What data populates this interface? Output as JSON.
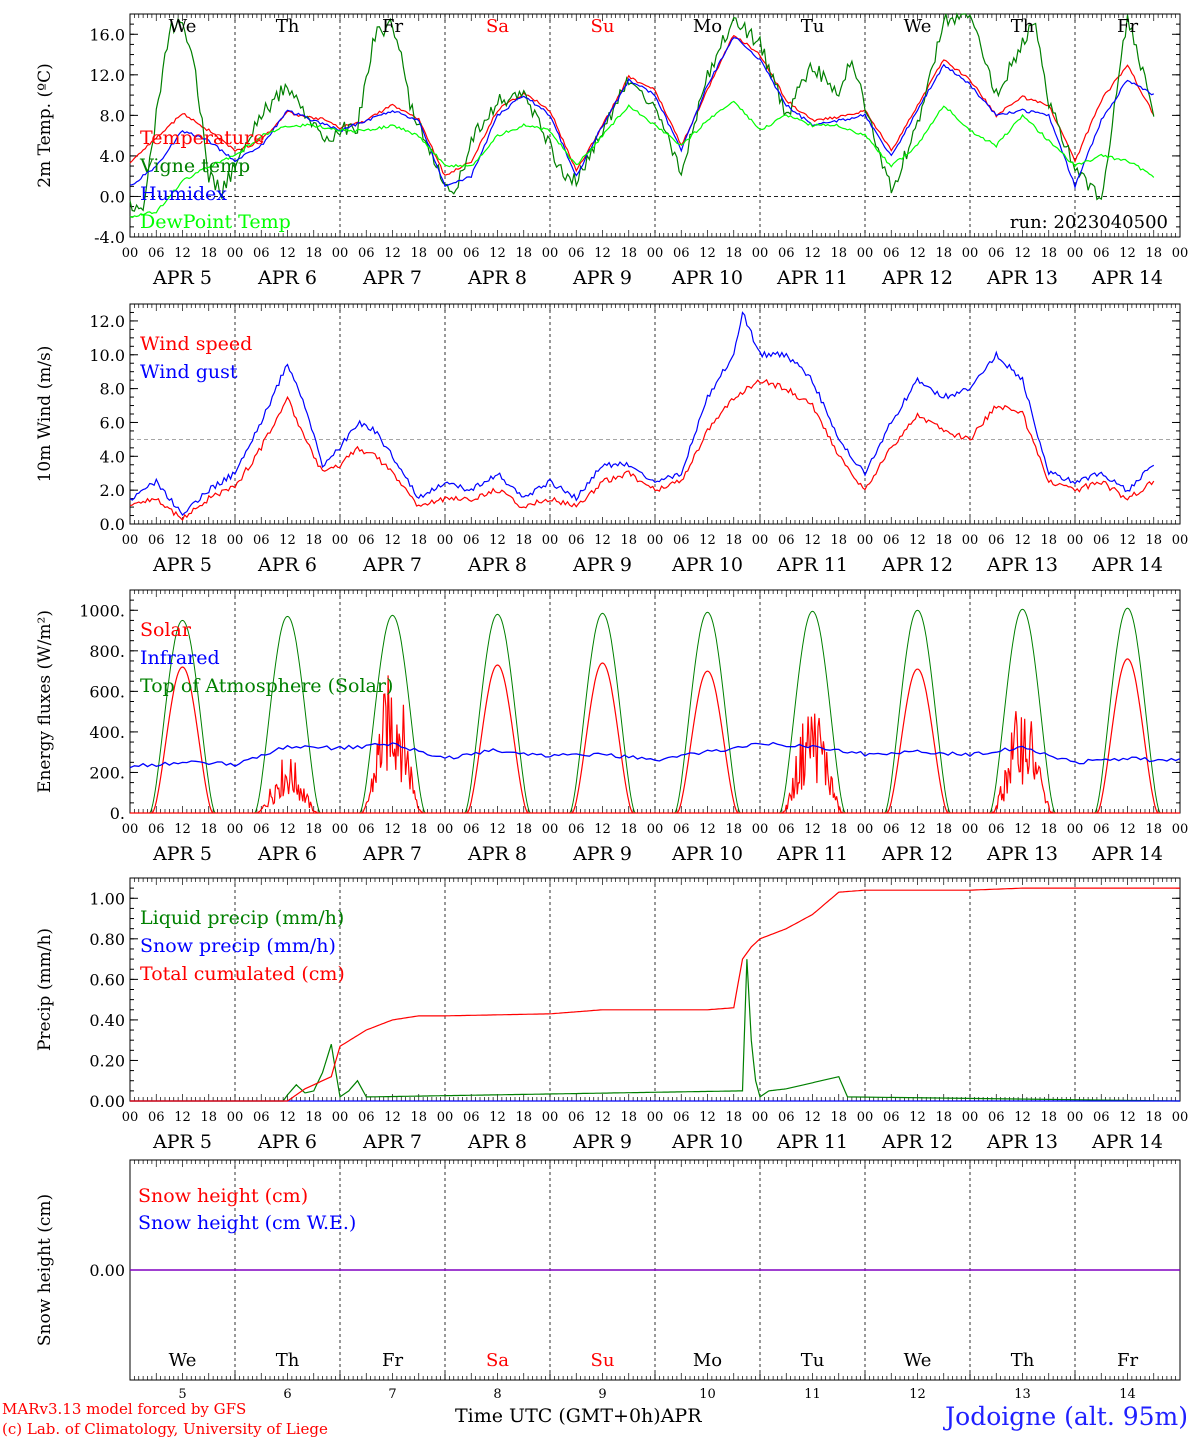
{
  "run_label": "run: 2023040500",
  "days": [
    "5",
    "6",
    "7",
    "8",
    "9",
    "10",
    "11",
    "12",
    "13",
    "14"
  ],
  "weekdays": [
    {
      "label": "We",
      "color": "#000000"
    },
    {
      "label": "Th",
      "color": "#000000"
    },
    {
      "label": "Fr",
      "color": "#000000"
    },
    {
      "label": "Sa",
      "color": "#ff0000"
    },
    {
      "label": "Su",
      "color": "#ff0000"
    },
    {
      "label": "Mo",
      "color": "#000000"
    },
    {
      "label": "Tu",
      "color": "#000000"
    },
    {
      "label": "We",
      "color": "#000000"
    },
    {
      "label": "Th",
      "color": "#000000"
    },
    {
      "label": "Fr",
      "color": "#000000"
    }
  ],
  "month_label": "APR",
  "hour_ticks": [
    "00",
    "06",
    "12",
    "18"
  ],
  "footer": {
    "model": "MARv3.13 model forced by GFS",
    "lab": "(c) Lab. of Climatology, University of Liege",
    "xlabel": "Time UTC (GMT+0h)",
    "month": "APR",
    "station": "Jodoigne (alt. 95m)"
  },
  "chart_data": [
    {
      "type": "line",
      "ylabel": "2m Temp. (ºC)",
      "ylim": [
        -4,
        18
      ],
      "yticks": [
        "-4.0",
        "0.0",
        "4.0",
        "8.0",
        "12.0",
        "16.0"
      ],
      "ytick_values": [
        -4,
        0,
        4,
        8,
        12,
        16
      ],
      "x_unit": "hours since APR 5 00 UTC",
      "series": [
        {
          "name": "Temperature",
          "color": "#ff0000",
          "x": [
            0,
            6,
            12,
            18,
            24,
            30,
            36,
            40,
            44,
            48,
            54,
            60,
            66,
            72,
            78,
            84,
            90,
            96,
            102,
            108,
            114,
            120,
            126,
            132,
            138,
            144,
            150,
            156,
            162,
            168,
            174,
            180,
            186,
            192,
            198,
            204,
            210,
            216,
            222,
            228,
            234
          ],
          "values": [
            3.4,
            5.8,
            8.2,
            6.5,
            4.5,
            5.5,
            8.4,
            7.8,
            7.6,
            6.8,
            7.5,
            9.0,
            7.6,
            2.0,
            3.5,
            8.5,
            10.2,
            8.5,
            2.5,
            7.0,
            11.8,
            10.5,
            5.0,
            10.5,
            16.0,
            14.0,
            9.5,
            7.5,
            7.8,
            8.5,
            4.5,
            9.0,
            13.5,
            11.5,
            8.0,
            9.8,
            9.0,
            3.5,
            9.5,
            13.0,
            8.0
          ]
        },
        {
          "name": "Vigne temp",
          "color": "#008000",
          "x": [
            0,
            3,
            6,
            9,
            12,
            15,
            18,
            21,
            24,
            30,
            36,
            42,
            46,
            48,
            52,
            56,
            60,
            62,
            64,
            68,
            72,
            74,
            78,
            84,
            90,
            96,
            99,
            102,
            108,
            114,
            120,
            126,
            132,
            138,
            144,
            150,
            156,
            162,
            165,
            168,
            174,
            180,
            186,
            192,
            198,
            204,
            207,
            210,
            216,
            222,
            228,
            234
          ],
          "values": [
            -0.5,
            -1.5,
            8.0,
            16.5,
            17.0,
            12.0,
            2.0,
            0.5,
            3.0,
            8.0,
            11.0,
            7.0,
            5.5,
            6.5,
            7.0,
            16.0,
            17.0,
            14.0,
            9.0,
            5.0,
            1.5,
            0.0,
            5.5,
            9.5,
            10.0,
            5.0,
            2.0,
            1.5,
            6.5,
            11.5,
            9.0,
            2.5,
            12.0,
            17.5,
            15.0,
            8.0,
            13.0,
            10.0,
            14.0,
            9.0,
            0.5,
            7.0,
            17.5,
            18.0,
            10.0,
            15.0,
            17.5,
            9.0,
            3.0,
            -0.5,
            18.0,
            8.0
          ]
        },
        {
          "name": "Humidex",
          "color": "#0000ff",
          "x": [
            0,
            6,
            12,
            18,
            24,
            30,
            36,
            42,
            48,
            54,
            60,
            66,
            72,
            78,
            84,
            90,
            96,
            102,
            108,
            114,
            120,
            126,
            132,
            138,
            144,
            150,
            156,
            162,
            168,
            174,
            180,
            186,
            192,
            198,
            204,
            210,
            216,
            222,
            228,
            234
          ],
          "values": [
            1.0,
            3.0,
            6.5,
            5.5,
            3.5,
            5.0,
            8.5,
            7.5,
            6.5,
            7.5,
            8.5,
            7.5,
            1.0,
            2.0,
            8.0,
            10.0,
            8.0,
            2.0,
            7.0,
            11.5,
            10.0,
            4.5,
            11.0,
            15.8,
            13.5,
            9.0,
            7.0,
            7.5,
            8.0,
            4.0,
            8.5,
            13.0,
            11.0,
            8.0,
            8.5,
            8.0,
            1.0,
            7.5,
            11.5,
            10.0
          ]
        },
        {
          "name": "DewPoint Temp",
          "color": "#00ff00",
          "x": [
            0,
            6,
            12,
            18,
            24,
            30,
            36,
            42,
            48,
            54,
            60,
            66,
            72,
            78,
            84,
            90,
            96,
            102,
            108,
            114,
            120,
            126,
            132,
            138,
            144,
            150,
            156,
            162,
            168,
            174,
            180,
            186,
            192,
            198,
            204,
            210,
            216,
            222,
            228,
            234
          ],
          "values": [
            -2.0,
            -1.5,
            1.5,
            3.0,
            4.0,
            6.0,
            7.0,
            7.0,
            6.5,
            6.5,
            7.0,
            6.0,
            3.0,
            3.0,
            6.0,
            7.0,
            6.5,
            3.0,
            6.0,
            9.0,
            7.0,
            5.0,
            7.5,
            9.5,
            6.5,
            8.0,
            7.0,
            7.0,
            6.0,
            3.0,
            5.0,
            9.0,
            6.5,
            5.0,
            8.0,
            5.5,
            3.0,
            4.0,
            3.5,
            2.0
          ]
        }
      ],
      "annotation": "run: 2023040500"
    },
    {
      "type": "line",
      "ylabel": "10m Wind (m/s)",
      "ylim": [
        0,
        13
      ],
      "yticks": [
        "0.0",
        "2.0",
        "4.0",
        "6.0",
        "8.0",
        "10.0",
        "12.0"
      ],
      "ytick_values": [
        0,
        2,
        4,
        6,
        8,
        10,
        12
      ],
      "ref_line": 5,
      "x_unit": "hours since APR 5 00 UTC",
      "series": [
        {
          "name": "Wind speed",
          "color": "#ff0000",
          "x": [
            0,
            6,
            12,
            18,
            24,
            30,
            36,
            40,
            44,
            48,
            52,
            56,
            60,
            66,
            72,
            78,
            84,
            90,
            96,
            102,
            108,
            114,
            120,
            126,
            132,
            138,
            144,
            150,
            156,
            162,
            168,
            174,
            180,
            186,
            192,
            198,
            204,
            210,
            216,
            222,
            228,
            234
          ],
          "values": [
            1.2,
            1.5,
            0.3,
            1.5,
            2.2,
            4.5,
            7.5,
            5.0,
            3.0,
            3.5,
            4.5,
            4.0,
            3.0,
            1.0,
            1.5,
            1.5,
            2.0,
            1.0,
            1.5,
            1.0,
            2.5,
            3.0,
            2.0,
            2.5,
            5.5,
            7.5,
            8.5,
            8.0,
            7.0,
            4.0,
            2.0,
            4.5,
            6.5,
            5.5,
            5.0,
            7.0,
            6.5,
            2.5,
            2.0,
            2.5,
            1.5,
            2.5
          ]
        },
        {
          "name": "Wind gust",
          "color": "#0000ff",
          "x": [
            0,
            6,
            12,
            18,
            24,
            30,
            36,
            40,
            44,
            48,
            52,
            56,
            60,
            66,
            72,
            78,
            84,
            90,
            96,
            102,
            108,
            114,
            120,
            126,
            132,
            138,
            140,
            144,
            150,
            156,
            162,
            168,
            174,
            180,
            186,
            192,
            198,
            204,
            210,
            216,
            222,
            228,
            234
          ],
          "values": [
            1.5,
            2.5,
            0.5,
            2.0,
            3.0,
            6.0,
            9.5,
            7.0,
            3.5,
            4.5,
            6.0,
            5.5,
            4.0,
            1.5,
            2.5,
            2.0,
            3.0,
            1.5,
            2.5,
            1.5,
            3.5,
            3.5,
            2.5,
            3.0,
            7.5,
            10.0,
            12.5,
            10.0,
            10.0,
            8.5,
            5.0,
            3.0,
            6.0,
            8.5,
            7.5,
            8.0,
            10.0,
            8.5,
            3.0,
            2.5,
            3.0,
            2.0,
            3.5
          ]
        }
      ]
    },
    {
      "type": "line",
      "ylabel": "Energy fluxes (W/m²)",
      "ylim": [
        0,
        1100
      ],
      "yticks": [
        "0.",
        "200.",
        "400.",
        "600.",
        "800.",
        "1000."
      ],
      "ytick_values": [
        0,
        200,
        400,
        600,
        800,
        1000
      ],
      "x_unit": "hours since APR 5 00 UTC",
      "series": [
        {
          "name": "Solar",
          "color": "#ff0000",
          "peaks": [
            720,
            290,
            720,
            730,
            740,
            700,
            570,
            710,
            560,
            760
          ],
          "cloudy_days": [
            1,
            2,
            6,
            8
          ]
        },
        {
          "name": "Infrared",
          "color": "#0000ff",
          "x": [
            0,
            12,
            24,
            36,
            48,
            60,
            72,
            84,
            96,
            108,
            120,
            132,
            144,
            156,
            168,
            180,
            192,
            204,
            216,
            228,
            234
          ],
          "values": [
            230,
            250,
            240,
            330,
            320,
            340,
            270,
            310,
            280,
            290,
            260,
            300,
            340,
            330,
            290,
            300,
            290,
            320,
            250,
            270,
            260
          ]
        },
        {
          "name": "Top of Atmosphere (Solar)",
          "color": "#008000",
          "peaks": [
            950,
            970,
            975,
            980,
            985,
            990,
            995,
            1000,
            1005,
            1010
          ]
        }
      ]
    },
    {
      "type": "line",
      "ylabel": "Precip (mm/h)",
      "ylim": [
        0,
        1.1
      ],
      "yticks": [
        "0.00",
        "0.20",
        "0.40",
        "0.60",
        "0.80",
        "1.00"
      ],
      "ytick_values": [
        0,
        0.2,
        0.4,
        0.6,
        0.8,
        1.0
      ],
      "x_unit": "hours since APR 5 00 UTC",
      "series": [
        {
          "name": "Liquid precip (mm/h)",
          "color": "#008000",
          "x": [
            36,
            38,
            40,
            42,
            44,
            46,
            48,
            50,
            52,
            54,
            140,
            141,
            142,
            143,
            144,
            146,
            150,
            154,
            158,
            162,
            164
          ],
          "values": [
            0.03,
            0.08,
            0.04,
            0.05,
            0.14,
            0.28,
            0.02,
            0.05,
            0.1,
            0.02,
            0.05,
            0.7,
            0.3,
            0.1,
            0.02,
            0.05,
            0.06,
            0.08,
            0.1,
            0.12,
            0.02
          ]
        },
        {
          "name": "Snow precip (mm/h)",
          "color": "#0000ff",
          "x": [
            0,
            240
          ],
          "values": [
            0,
            0
          ]
        },
        {
          "name": "Total cumulated (cm)",
          "color": "#ff0000",
          "x": [
            0,
            36,
            40,
            44,
            46,
            48,
            54,
            60,
            66,
            72,
            96,
            102,
            108,
            120,
            132,
            138,
            140,
            142,
            144,
            150,
            156,
            162,
            168,
            180,
            192,
            204,
            216,
            228,
            240
          ],
          "values": [
            0,
            0,
            0.06,
            0.1,
            0.12,
            0.27,
            0.35,
            0.4,
            0.42,
            0.42,
            0.43,
            0.44,
            0.45,
            0.45,
            0.45,
            0.46,
            0.7,
            0.76,
            0.8,
            0.85,
            0.92,
            1.03,
            1.04,
            1.04,
            1.04,
            1.05,
            1.05,
            1.05,
            1.05
          ]
        }
      ]
    },
    {
      "type": "line",
      "ylabel": "Snow height (cm)",
      "yticks": [
        "0.00"
      ],
      "ytick_values": [
        0
      ],
      "x_unit": "hours since APR 5 00 UTC",
      "series": [
        {
          "name": "Snow height (cm)",
          "color": "#ff0000",
          "x": [
            0,
            240
          ],
          "values": [
            0,
            0
          ]
        },
        {
          "name": "Snow height (cm W.E.)",
          "color": "#0000ff",
          "x": [
            0,
            240
          ],
          "values": [
            0,
            0
          ]
        }
      ]
    }
  ]
}
